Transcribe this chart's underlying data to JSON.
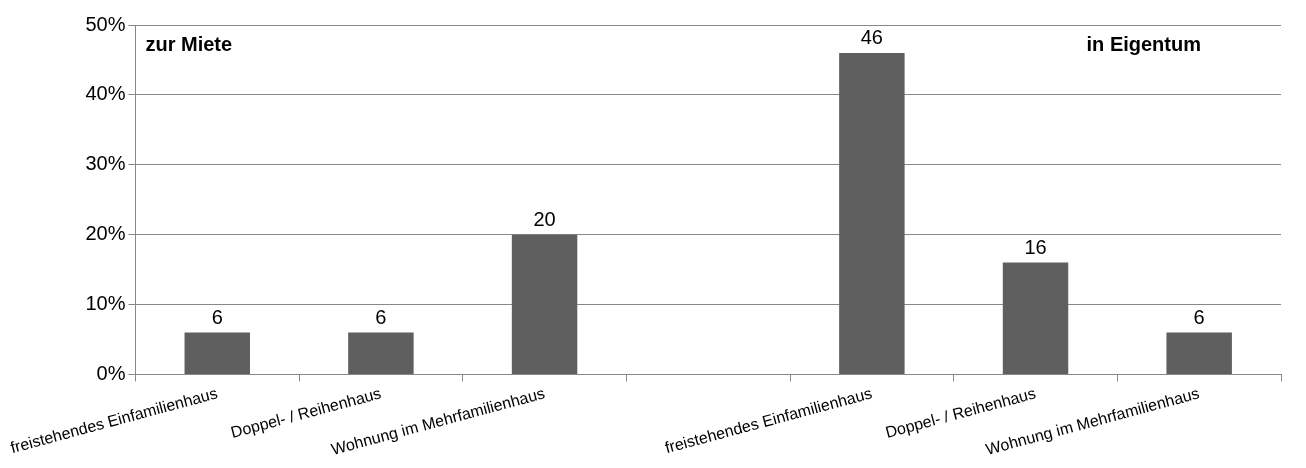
{
  "chart_data": {
    "type": "bar",
    "categories": [
      "freistehendes Einfamilienhaus",
      "Doppel- / Reihenhaus",
      "Wohnung im Mehrfamilienhaus",
      null,
      "freistehendes Einfamilienhaus",
      "Doppel- / Reihenhaus",
      "Wohnung im Mehrfamilienhaus"
    ],
    "values": [
      6,
      6,
      20,
      null,
      46,
      16,
      6
    ],
    "color": "#5f5f5f",
    "ylim": [
      0,
      50
    ],
    "yticks": [
      {
        "value": 0,
        "label": "0%"
      },
      {
        "value": 10,
        "label": "10%"
      },
      {
        "value": 20,
        "label": "20%"
      },
      {
        "value": 30,
        "label": "30%"
      },
      {
        "value": 40,
        "label": "40%"
      },
      {
        "value": 50,
        "label": "50%"
      }
    ],
    "grid": "y",
    "data_labels": true,
    "annotations": [
      "zur Miete",
      "in Eigentum"
    ]
  }
}
